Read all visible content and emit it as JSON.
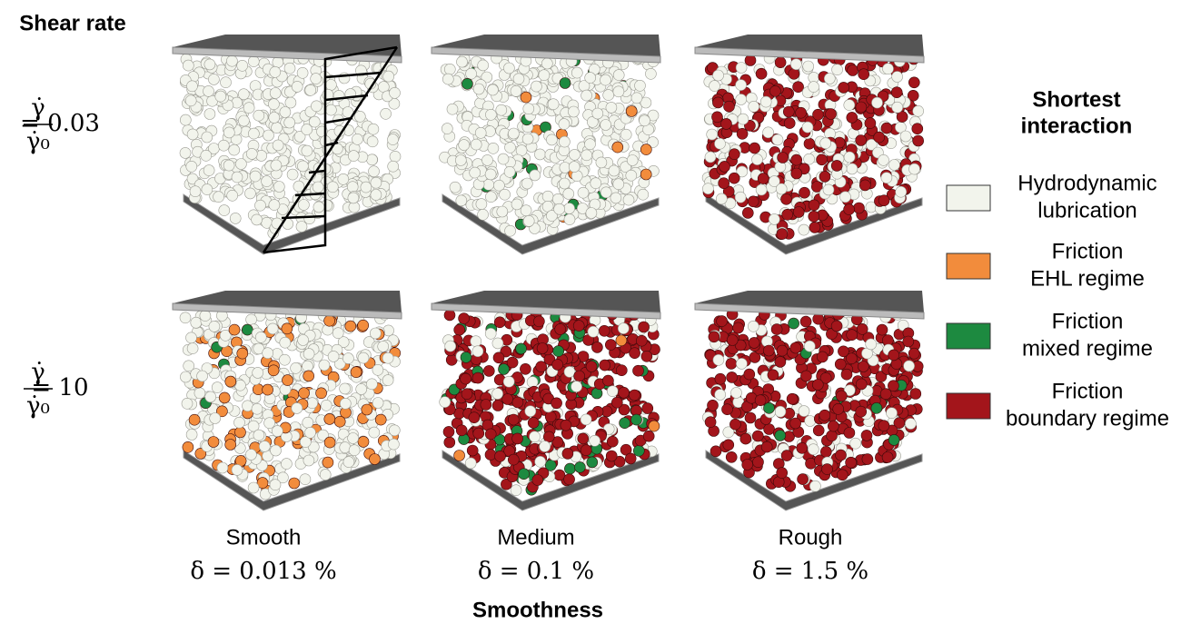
{
  "header": {
    "title": "Shear rate"
  },
  "rows": [
    {
      "numerator": "γ̇",
      "denominator": "γ̇₀",
      "value": "= 0.03"
    },
    {
      "numerator": "γ̇",
      "denominator": "γ̇₀",
      "value": "= 10"
    }
  ],
  "columns": [
    {
      "label": "Smooth",
      "delta": "δ = 0.013 %"
    },
    {
      "label": "Medium",
      "delta": "δ = 0.1 %"
    },
    {
      "label": "Rough",
      "delta": "δ = 1.5 %"
    }
  ],
  "x_title": "Smoothness",
  "legend": {
    "title": [
      "Shortest",
      "interaction"
    ],
    "items": [
      {
        "lines": [
          "Hydrodynamic",
          "lubrication"
        ],
        "color": "#f2f4ec"
      },
      {
        "lines": [
          "Friction",
          "EHL regime"
        ],
        "color": "#f28c3c"
      },
      {
        "lines": [
          "Friction",
          "mixed regime"
        ],
        "color": "#1d8a40"
      },
      {
        "lines": [
          "Friction",
          "boundary regime"
        ],
        "color": "#a3151b"
      }
    ]
  }
}
